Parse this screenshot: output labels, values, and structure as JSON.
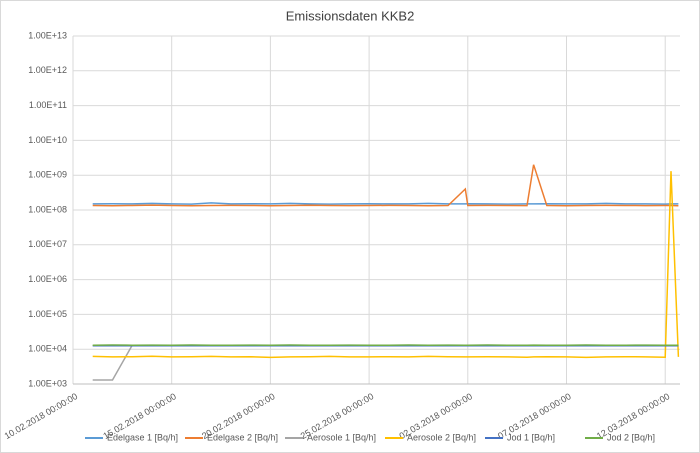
{
  "chart_data": {
    "type": "line",
    "title": "Emissionsdaten KKB2",
    "ylog": true,
    "grid": true,
    "legend": "bottom",
    "x": [
      "2018-02-11T00:00:00",
      "2018-02-12T00:00:00",
      "2018-02-13T00:00:00",
      "2018-02-14T00:00:00",
      "2018-02-15T00:00:00",
      "2018-02-16T00:00:00",
      "2018-02-17T00:00:00",
      "2018-02-18T00:00:00",
      "2018-02-19T00:00:00",
      "2018-02-20T00:00:00",
      "2018-02-21T00:00:00",
      "2018-02-22T00:00:00",
      "2018-02-23T00:00:00",
      "2018-02-24T00:00:00",
      "2018-02-25T00:00:00",
      "2018-02-26T00:00:00",
      "2018-02-27T00:00:00",
      "2018-02-28T00:00:00",
      "2018-03-01T00:00:00",
      "2018-03-01T21:00:00",
      "2018-03-02T00:00:00",
      "2018-03-03T00:00:00",
      "2018-03-04T00:00:00",
      "2018-03-05T00:00:00",
      "2018-03-05T08:00:00",
      "2018-03-06T00:00:00",
      "2018-03-07T00:00:00",
      "2018-03-08T00:00:00",
      "2018-03-09T00:00:00",
      "2018-03-10T00:00:00",
      "2018-03-11T00:00:00",
      "2018-03-12T00:00:00",
      "2018-03-12T07:00:00",
      "2018-03-12T16:00:00"
    ],
    "xlim": [
      "2018-02-10T00:00:00",
      "2018-03-12T18:00:00"
    ],
    "xticks": [
      {
        "value": "2018-02-10T00:00:00",
        "label": "10.02.2018 00:00:00"
      },
      {
        "value": "2018-02-15T00:00:00",
        "label": "15.02.2018 00:00:00"
      },
      {
        "value": "2018-02-20T00:00:00",
        "label": "20.02.2018 00:00:00"
      },
      {
        "value": "2018-02-25T00:00:00",
        "label": "25.02.2018 00:00:00"
      },
      {
        "value": "2018-03-02T00:00:00",
        "label": "02.03.2018 00:00:00"
      },
      {
        "value": "2018-03-07T00:00:00",
        "label": "07.03.2018 00:00:00"
      },
      {
        "value": "2018-03-12T00:00:00",
        "label": "12.03.2018 00:00:00"
      }
    ],
    "ylim": [
      1000,
      10000000000000
    ],
    "yticks": [
      {
        "value": 1000,
        "label": "1.00E+03"
      },
      {
        "value": 10000,
        "label": "1.00E+04"
      },
      {
        "value": 100000,
        "label": "1.00E+05"
      },
      {
        "value": 1000000,
        "label": "1.00E+06"
      },
      {
        "value": 10000000,
        "label": "1.00E+07"
      },
      {
        "value": 100000000,
        "label": "1.00E+08"
      },
      {
        "value": 1000000000,
        "label": "1.00E+09"
      },
      {
        "value": 10000000000,
        "label": "1.00E+10"
      },
      {
        "value": 100000000000,
        "label": "1.00E+11"
      },
      {
        "value": 1000000000000,
        "label": "1.00E+12"
      },
      {
        "value": 10000000000000,
        "label": "1.00E+13"
      }
    ],
    "series": [
      {
        "name": "Edelgase 1 [Bq/h]",
        "color": "#5b9bd5",
        "values": [
          150000000.0,
          152000000.0,
          150000000.0,
          155000000.0,
          150000000.0,
          148000000.0,
          160000000.0,
          150000000.0,
          152000000.0,
          150000000.0,
          155000000.0,
          150000000.0,
          148000000.0,
          150000000.0,
          152000000.0,
          150000000.0,
          150000000.0,
          155000000.0,
          150000000.0,
          150000000.0,
          152000000.0,
          150000000.0,
          148000000.0,
          150000000.0,
          150000000.0,
          152000000.0,
          150000000.0,
          150000000.0,
          155000000.0,
          150000000.0,
          150000000.0,
          148000000.0,
          150000000.0,
          150000000.0
        ]
      },
      {
        "name": "Edelgase 2 [Bq/h]",
        "color": "#ed7d31",
        "values": [
          135000000.0,
          133000000.0,
          135000000.0,
          138000000.0,
          135000000.0,
          132000000.0,
          135000000.0,
          136000000.0,
          135000000.0,
          133000000.0,
          135000000.0,
          137000000.0,
          135000000.0,
          134000000.0,
          135000000.0,
          136000000.0,
          135000000.0,
          133000000.0,
          135000000.0,
          400000000.0,
          135000000.0,
          136000000.0,
          135000000.0,
          134000000.0,
          2000000000.0,
          135000000.0,
          133000000.0,
          135000000.0,
          136000000.0,
          135000000.0,
          134000000.0,
          135000000.0,
          135000000.0,
          133000000.0
        ]
      },
      {
        "name": "Aerosole 1 [Bq/h]",
        "color": "#a5a5a5",
        "values": [
          1300,
          1300,
          13000,
          13000,
          13000,
          13000,
          13000,
          13000,
          13000,
          13000,
          13000,
          13000,
          13000,
          13000,
          13000,
          13000,
          13000,
          13000,
          13000,
          13000,
          13000,
          13000,
          13000,
          13000,
          13000,
          13000,
          13000,
          13000,
          13000,
          13000,
          13000,
          13000,
          13000,
          13000
        ]
      },
      {
        "name": "Aerosole 2 [Bq/h]",
        "color": "#ffc000",
        "values": [
          6200,
          6000,
          6100,
          6300,
          6000,
          6100,
          6200,
          6000,
          6100,
          5800,
          6000,
          6100,
          6200,
          6000,
          6000,
          6100,
          6000,
          6200,
          6100,
          6000,
          6000,
          6100,
          6000,
          5900,
          6000,
          6100,
          6000,
          5800,
          6000,
          6100,
          6000,
          5900,
          1300000000.0,
          6000
        ]
      },
      {
        "name": "Jod 1 [Bq/h]",
        "color": "#4472c4",
        "values": [
          12500,
          12500,
          12500,
          12500,
          12500,
          12500,
          12500,
          12500,
          12500,
          12500,
          12500,
          12500,
          12500,
          12500,
          12500,
          12500,
          12500,
          12500,
          12500,
          12500,
          12500,
          12500,
          12500,
          12500,
          12500,
          12500,
          12500,
          12500,
          12500,
          12500,
          12500,
          12500,
          12500,
          12500
        ]
      },
      {
        "name": "Jod 2 [Bq/h]",
        "color": "#70ad47",
        "values": [
          13000,
          13200,
          13000,
          13100,
          13000,
          13200,
          13000,
          13000,
          13100,
          13000,
          13200,
          13000,
          13000,
          13100,
          13000,
          13000,
          13200,
          13000,
          13100,
          13000,
          13000,
          13200,
          13000,
          13000,
          13100,
          13000,
          13000,
          13200,
          13000,
          13000,
          13100,
          13000,
          13000,
          13000
        ]
      }
    ]
  }
}
